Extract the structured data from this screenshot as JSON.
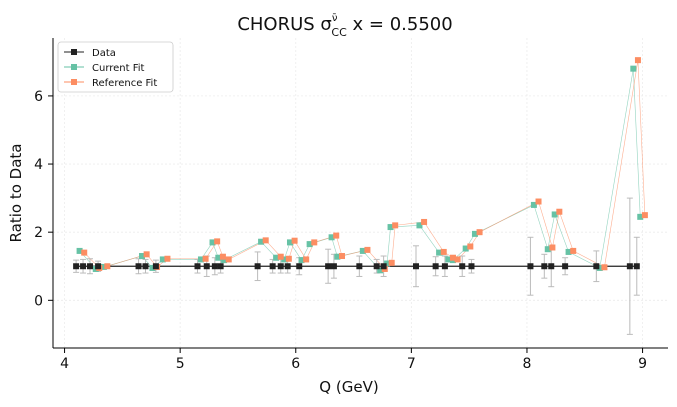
{
  "chart_data": {
    "type": "scatter",
    "title": "CHORUS σ",
    "title_super": "ν̄",
    "title_sub": "CC",
    "title_tail": " x = 0.5500",
    "xlabel": "Q (GeV)",
    "ylabel": "Ratio to Data",
    "xlim": [
      3.9,
      9.22
    ],
    "ylim": [
      -1.4,
      7.7
    ],
    "xticks": [
      4,
      5,
      6,
      7,
      8,
      9
    ],
    "yticks": [
      0,
      2,
      4,
      6
    ],
    "grid": true,
    "legend": "top-left",
    "colors": {
      "data": "#222222",
      "current": "#66c2a5",
      "reference": "#fc8d62",
      "errorbar": "#bbbbbb"
    },
    "series": [
      {
        "name": "Data",
        "x": [
          4.1,
          4.16,
          4.22,
          4.29,
          4.64,
          4.7,
          4.79,
          5.15,
          5.23,
          5.3,
          5.35,
          5.67,
          5.8,
          5.87,
          5.93,
          6.03,
          6.28,
          6.33,
          6.55,
          6.7,
          6.76,
          7.04,
          7.21,
          7.29,
          7.44,
          7.52,
          8.03,
          8.15,
          8.21,
          8.33,
          8.6,
          8.89,
          8.95
        ],
        "values": [
          1,
          1,
          1,
          1,
          1,
          1,
          1,
          1,
          1,
          1,
          1,
          1,
          1,
          1,
          1,
          1,
          1,
          1,
          1,
          1,
          1,
          1,
          1,
          1,
          1,
          1,
          1,
          1,
          1,
          1,
          1,
          1,
          1
        ],
        "errors": [
          0.18,
          0.2,
          0.22,
          0.15,
          0.22,
          0.2,
          0.18,
          0.2,
          0.3,
          0.25,
          0.2,
          0.42,
          0.2,
          0.2,
          0.2,
          0.25,
          0.5,
          0.35,
          0.3,
          0.2,
          0.3,
          0.6,
          0.28,
          0.3,
          0.3,
          0.2,
          0.85,
          0.35,
          0.6,
          0.25,
          0.45,
          2.0,
          0.85
        ]
      },
      {
        "name": "Current Fit",
        "x": [
          4.13,
          4.27,
          4.34,
          4.67,
          4.76,
          4.85,
          5.18,
          5.28,
          5.33,
          5.38,
          5.7,
          5.83,
          5.9,
          5.95,
          6.05,
          6.12,
          6.31,
          6.36,
          6.58,
          6.73,
          6.79,
          6.82,
          7.07,
          7.24,
          7.32,
          7.36,
          7.47,
          7.55,
          8.06,
          8.18,
          8.24,
          8.36,
          8.63,
          8.92,
          8.98
        ],
        "values": [
          1.45,
          0.92,
          0.98,
          1.3,
          0.95,
          1.2,
          1.2,
          1.7,
          1.25,
          1.18,
          1.72,
          1.25,
          1.2,
          1.7,
          1.18,
          1.65,
          1.85,
          1.28,
          1.45,
          0.88,
          1.08,
          2.15,
          2.2,
          1.4,
          1.2,
          1.18,
          1.52,
          1.95,
          2.8,
          1.5,
          2.52,
          1.42,
          0.95,
          6.8,
          2.45
        ]
      },
      {
        "name": "Reference Fit",
        "x": [
          4.17,
          4.3,
          4.37,
          4.71,
          4.8,
          4.89,
          5.22,
          5.32,
          5.37,
          5.42,
          5.74,
          5.87,
          5.94,
          5.99,
          6.09,
          6.16,
          6.35,
          6.4,
          6.62,
          6.77,
          6.83,
          6.86,
          7.11,
          7.28,
          7.36,
          7.4,
          7.51,
          7.59,
          8.1,
          8.22,
          8.28,
          8.4,
          8.67,
          8.96,
          9.02
        ],
        "values": [
          1.4,
          0.95,
          1.0,
          1.35,
          0.98,
          1.22,
          1.22,
          1.73,
          1.28,
          1.2,
          1.76,
          1.28,
          1.22,
          1.75,
          1.2,
          1.7,
          1.9,
          1.3,
          1.48,
          0.92,
          1.1,
          2.2,
          2.3,
          1.42,
          1.25,
          1.2,
          1.58,
          2.0,
          2.9,
          1.55,
          2.6,
          1.45,
          0.97,
          7.05,
          2.5
        ]
      }
    ]
  }
}
